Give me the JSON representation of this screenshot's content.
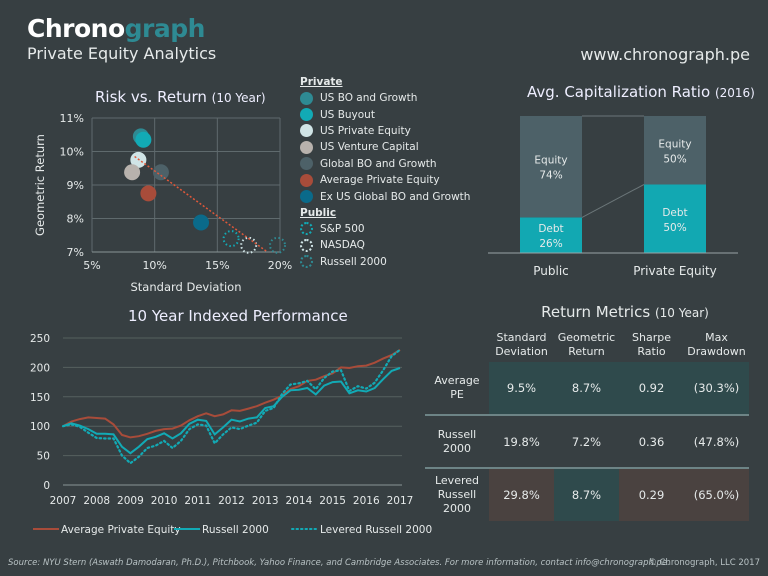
{
  "header": {
    "logo_part1": "Chrono",
    "logo_part2": "graph",
    "subtitle": "Private Equity Analytics",
    "url": "www.chronograph.pe"
  },
  "colors": {
    "background": "#373f42",
    "accent": "#2e8a93",
    "teal": "#12aab5",
    "brown": "#a84c3a"
  },
  "chart_data": [
    {
      "type": "scatter",
      "title": "Risk vs. Return",
      "title_suffix": "(10 Year)",
      "xlabel": "Standard Deviation",
      "ylabel": "Geometric Return",
      "xlim": [
        5,
        20
      ],
      "ylim": [
        7,
        11
      ],
      "xticks": [
        "5%",
        "10%",
        "15%",
        "20%"
      ],
      "yticks": [
        "7%",
        "8%",
        "9%",
        "10%",
        "11%"
      ],
      "grid": true,
      "legend_groups": [
        {
          "label": "Private",
          "series": [
            {
              "name": "US BO and Growth",
              "x": 8.9,
              "y": 10.45,
              "color": "#2e8a93",
              "style": "filled"
            },
            {
              "name": "US Buyout",
              "x": 9.1,
              "y": 10.35,
              "color": "#12aab5",
              "style": "filled"
            },
            {
              "name": "US Private Equity",
              "x": 8.7,
              "y": 9.75,
              "color": "#d0e4e6",
              "style": "filled"
            },
            {
              "name": "US Venture Capital",
              "x": 8.2,
              "y": 9.38,
              "color": "#b8b2ad",
              "style": "filled"
            },
            {
              "name": "Global BO and Growth",
              "x": 10.5,
              "y": 9.38,
              "color": "#4d6168",
              "style": "filled"
            },
            {
              "name": "Average Private Equity",
              "x": 9.5,
              "y": 8.75,
              "color": "#a84c3a",
              "style": "filled"
            },
            {
              "name": "Ex US Global BO and Growth",
              "x": 13.7,
              "y": 7.88,
              "color": "#0a6a8a",
              "style": "filled"
            }
          ]
        },
        {
          "label": "Public",
          "series": [
            {
              "name": "S&P 500",
              "x": 16.1,
              "y": 7.4,
              "color": "#12aab5",
              "style": "dotted"
            },
            {
              "name": "NASDAQ",
              "x": 17.5,
              "y": 7.2,
              "color": "#d0e4e6",
              "style": "dotted"
            },
            {
              "name": "Russell 2000",
              "x": 19.8,
              "y": 7.2,
              "color": "#2e8a93",
              "style": "dotted"
            }
          ]
        }
      ],
      "trendline": {
        "x": [
          8.4,
          19.0
        ],
        "y": [
          9.85,
          7.0
        ],
        "color": "#e0583a"
      }
    },
    {
      "type": "bar",
      "stacked": true,
      "title": "Avg. Capitalization Ratio",
      "title_suffix": "(2016)",
      "categories": [
        "Public",
        "Private Equity"
      ],
      "series": [
        {
          "name": "Debt",
          "values": [
            26,
            50
          ],
          "color": "#12a8b2"
        },
        {
          "name": "Equity",
          "values": [
            74,
            50
          ],
          "color": "#4d6168"
        }
      ],
      "ylim": [
        0,
        100
      ]
    },
    {
      "type": "line",
      "title": "10 Year Indexed Performance",
      "xlim": [
        2007,
        2017
      ],
      "ylim": [
        0,
        250
      ],
      "xticks": [
        "2007",
        "2008",
        "2009",
        "2010",
        "2011",
        "2012",
        "2013",
        "2014",
        "2015",
        "2016",
        "2017"
      ],
      "yticks": [
        "0",
        "50",
        "100",
        "150",
        "200",
        "250"
      ],
      "grid": true,
      "legend": "bottom",
      "x": [
        2007,
        2007.25,
        2007.5,
        2007.75,
        2008,
        2008.25,
        2008.5,
        2008.75,
        2009,
        2009.25,
        2009.5,
        2009.75,
        2010,
        2010.25,
        2010.5,
        2010.75,
        2011,
        2011.25,
        2011.5,
        2011.75,
        2012,
        2012.25,
        2012.5,
        2012.75,
        2013,
        2013.25,
        2013.5,
        2013.75,
        2014,
        2014.25,
        2014.5,
        2014.75,
        2015,
        2015.25,
        2015.5,
        2015.75,
        2016,
        2016.25,
        2016.5,
        2016.75,
        2017
      ],
      "series": [
        {
          "name": "Average Private Equity",
          "color": "#a84c3a",
          "style": "solid",
          "values": [
            100,
            108,
            112,
            115,
            114,
            113,
            103,
            85,
            81,
            83,
            87,
            92,
            95,
            96,
            101,
            110,
            117,
            122,
            117,
            120,
            127,
            126,
            130,
            134,
            140,
            145,
            152,
            163,
            168,
            177,
            179,
            185,
            190,
            200,
            199,
            202,
            203,
            208,
            215,
            221,
            230
          ]
        },
        {
          "name": "Russell 2000",
          "color": "#12aab5",
          "style": "solid",
          "values": [
            100,
            105,
            101,
            95,
            87,
            87,
            86,
            65,
            54,
            65,
            78,
            82,
            88,
            79,
            88,
            104,
            111,
            109,
            86,
            98,
            111,
            108,
            113,
            115,
            131,
            134,
            150,
            161,
            162,
            165,
            154,
            169,
            175,
            176,
            156,
            161,
            159,
            165,
            180,
            194,
            199
          ]
        },
        {
          "name": "Levered Russell 2000",
          "color": "#12aab5",
          "style": "dotted",
          "values": [
            100,
            103,
            99,
            89,
            80,
            79,
            79,
            50,
            37,
            48,
            63,
            67,
            75,
            63,
            75,
            95,
            103,
            101,
            71,
            86,
            98,
            95,
            101,
            106,
            126,
            131,
            155,
            171,
            173,
            177,
            163,
            182,
            193,
            195,
            160,
            168,
            164,
            174,
            195,
            219,
            230
          ]
        }
      ]
    },
    {
      "type": "table",
      "title": "Return Metrics",
      "title_suffix": "(10 Year)",
      "columns": [
        "Standard Deviation",
        "Geometric Return",
        "Sharpe Ratio",
        "Max Drawdown"
      ],
      "rows": [
        {
          "label": "Average PE",
          "values": [
            "9.5%",
            "8.7%",
            "0.92",
            "(30.3%)"
          ],
          "shading": [
            "teal",
            "teal",
            "teal",
            "teal"
          ]
        },
        {
          "label": "Russell 2000",
          "values": [
            "19.8%",
            "7.2%",
            "0.36",
            "(47.8%)"
          ],
          "shading": [
            "",
            "",
            "",
            ""
          ]
        },
        {
          "label": "Levered Russell 2000",
          "values": [
            "29.8%",
            "8.7%",
            "0.29",
            "(65.0%)"
          ],
          "shading": [
            "brown",
            "teal",
            "brown",
            "brown"
          ]
        }
      ]
    }
  ],
  "footer": {
    "source": "Source: NYU Stern (Aswath Damodaran, Ph.D.), Pitchbook, Yahoo Finance, and Cambridge Associates. For more information, contact info@chronograph.pe.",
    "copyright": "© Chronograph, LLC  2017"
  }
}
